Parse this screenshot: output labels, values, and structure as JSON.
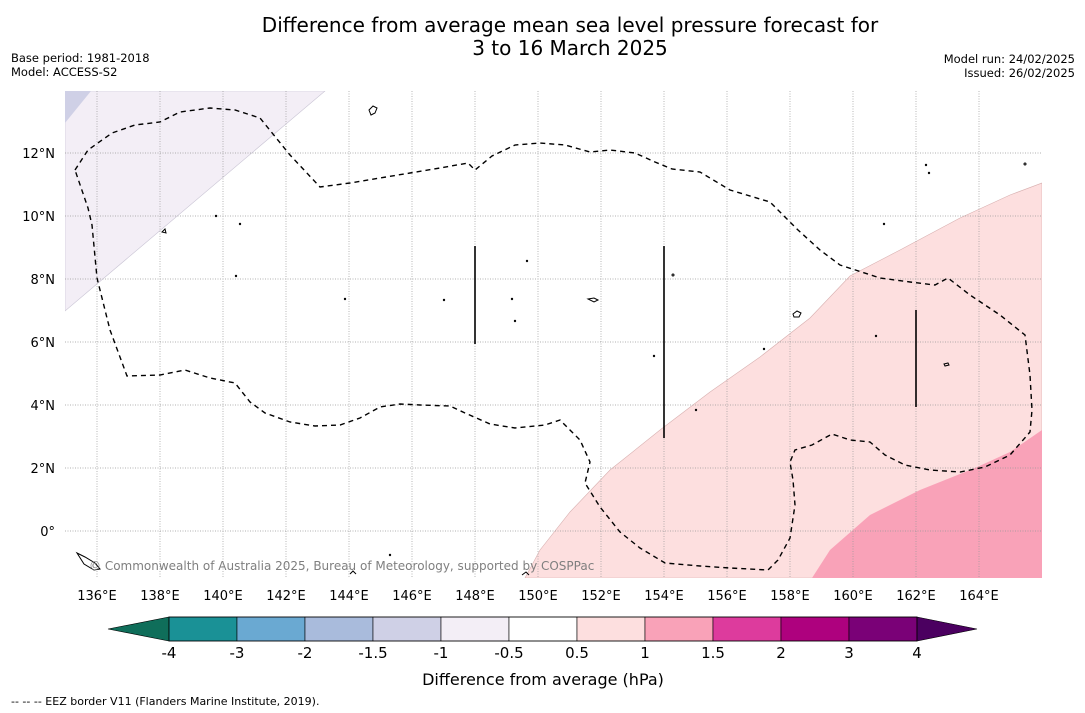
{
  "header": {
    "title_line1": "Difference from average mean sea level pressure forecast for",
    "title_line2": "3 to 16 March 2025",
    "base_period": "Base period: 1981-2018",
    "model": "Model: ACCESS-S2",
    "model_run": "Model run: 24/02/2025",
    "issued": "Issued: 26/02/2025"
  },
  "map": {
    "lon_labels": [
      "136°E",
      "138°E",
      "140°E",
      "142°E",
      "144°E",
      "146°E",
      "148°E",
      "150°E",
      "152°E",
      "154°E",
      "156°E",
      "158°E",
      "160°E",
      "162°E",
      "164°E"
    ],
    "lat_labels": [
      "12°N",
      "10°N",
      "8°N",
      "6°N",
      "4°N",
      "2°N",
      "0°"
    ],
    "copyright": "© Commonwealth of Australia 2025, Bureau of Meteorology, supported by COSPPac",
    "regions": [
      {
        "name": "negative-anomaly-light",
        "range": "-1 to -0.5",
        "color": "#f3eef6"
      },
      {
        "name": "negative-anomaly-medium",
        "range": "-1.5 to -1",
        "color": "#cfd0e6"
      },
      {
        "name": "positive-anomaly-light",
        "range": "0.5 to 1",
        "color": "#fddfdf"
      },
      {
        "name": "positive-anomaly-medium",
        "range": "1 to 1.5",
        "color": "#f9a2b8"
      }
    ]
  },
  "colorbar": {
    "ticks": [
      "-4",
      "-3",
      "-2",
      "-1.5",
      "-1",
      "-0.5",
      "0.5",
      "1",
      "1.5",
      "2",
      "3",
      "4"
    ],
    "colors": [
      "#1a9196",
      "#6aa9d2",
      "#a9bbdc",
      "#cfd0e6",
      "#f3eef6",
      "#ffffff",
      "#fddfdf",
      "#f9a2b8",
      "#dd3b9d",
      "#ae017e",
      "#7a0177"
    ],
    "low_extend_color": "#0f6e5a",
    "high_extend_color": "#4b0060",
    "label": "Difference from average (hPa)"
  },
  "footnote": "--  --  -- EEZ border V11 (Flanders Marine Institute, 2019)."
}
